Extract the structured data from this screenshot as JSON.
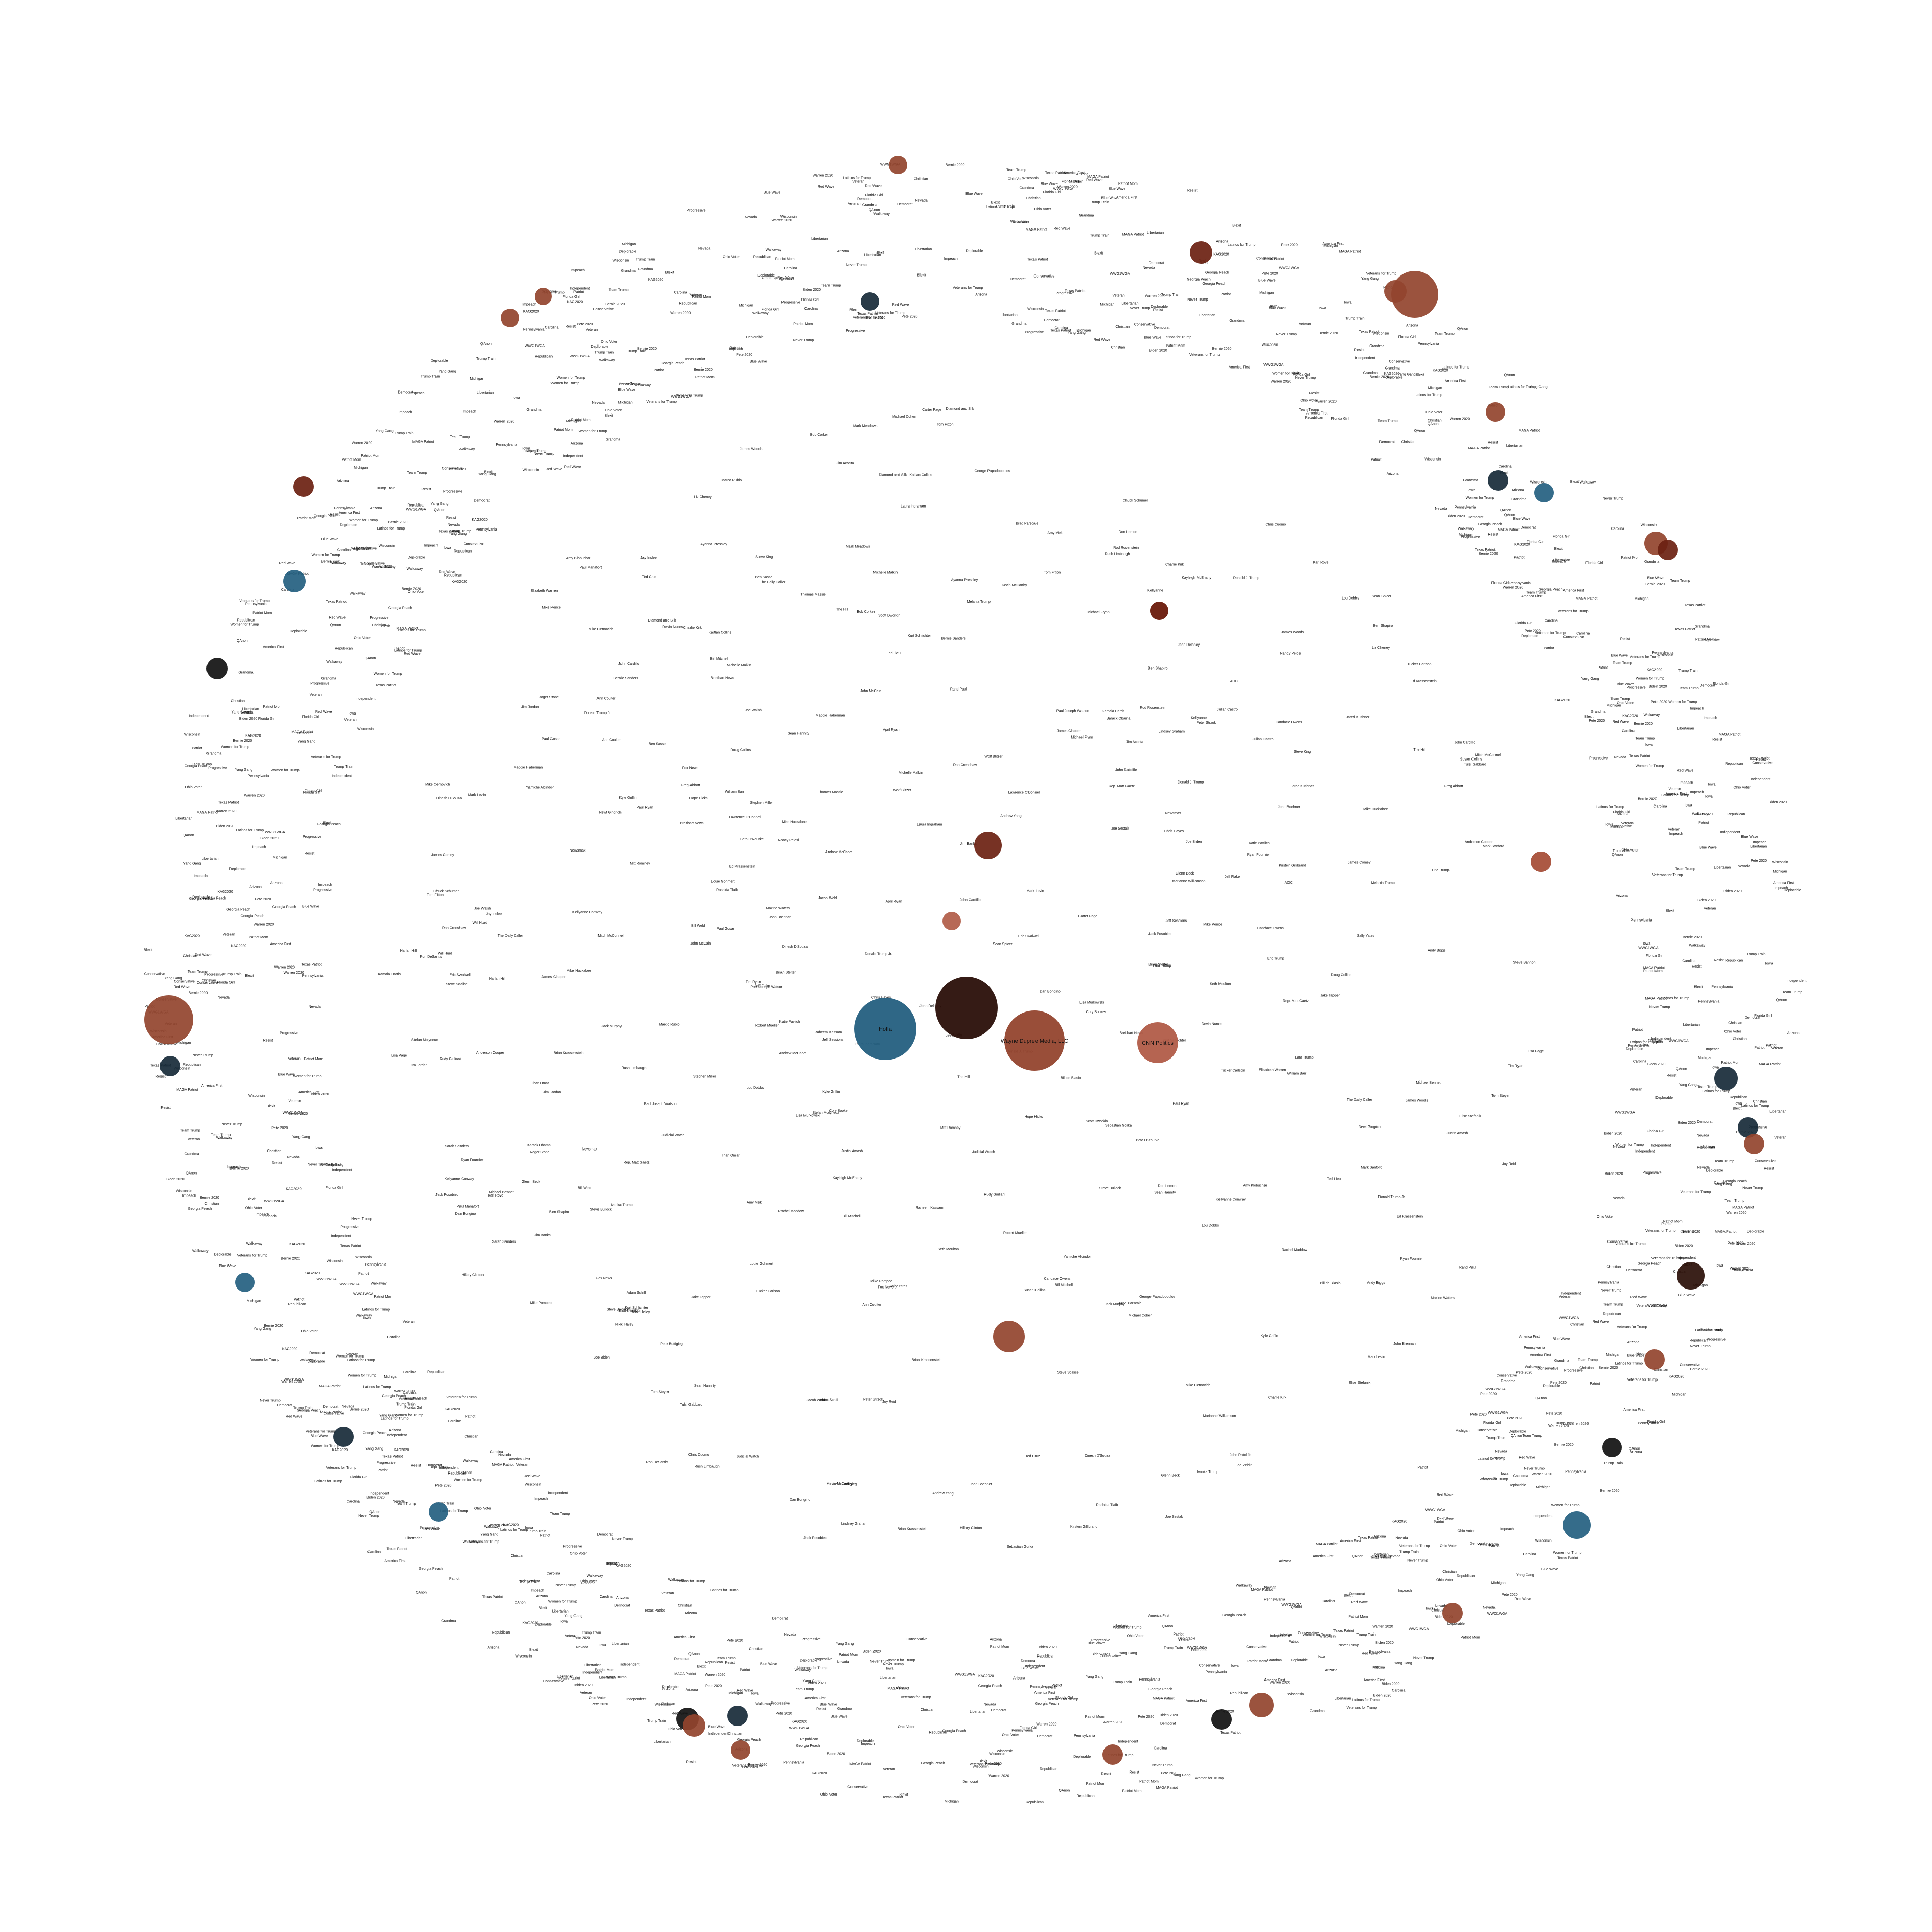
{
  "graph": {
    "palette": {
      "rust": "#93442e",
      "rust_light": "#b15c48",
      "dark_brown": "#2a0f08",
      "maroon": "#6b2111",
      "teal": "#245f80",
      "navy": "#172a38",
      "black": "#111111"
    },
    "hubs": [
      {
        "id": "hub-dark",
        "label": "",
        "color": "dark_brown"
      },
      {
        "id": "hub-teal",
        "label": "Hoffa",
        "color": "teal"
      },
      {
        "id": "hub-rust",
        "label": "Wayne Dupree Media, LLC",
        "color": "rust"
      },
      {
        "id": "hub-rust-small",
        "label": "CNN Politics",
        "color": "rust_light"
      }
    ],
    "inner_labels": [
      "Donald J. Trump",
      "Breitbart News",
      "Fox News",
      "Paul Joseph Watson",
      "Jack Posobiec",
      "Dinesh D'Souza",
      "Ryan Fournier",
      "Kyle Griffin",
      "The Hill",
      "Tom Fitton",
      "Charlie Kirk",
      "Brian Krassenstein",
      "Ed Krassenstein",
      "Mark Levin",
      "Laura Ingraham",
      "Sean Hannity",
      "Candace Owens",
      "James Woods",
      "Mike Cernovich",
      "Diamond and Silk",
      "Bill Mitchell",
      "Scott Dworkin",
      "Kurt Schlichter",
      "Jim Jordan",
      "Donald Trump Jr.",
      "Rep. Matt Gaetz",
      "Lou Dobbs",
      "Judicial Watch",
      "Newsmax",
      "The Daily Caller",
      "Tucker Carlson",
      "Dan Bongino",
      "Ann Coulter",
      "Kellyanne Conway",
      "Mike Huckabee",
      "Ben Shapiro",
      "Glenn Beck",
      "Michelle Malkin",
      "Rush Limbaugh",
      "John Cardillo",
      "Rudy Giuliani",
      "Katie Pavlich",
      "Stefan Molyneux",
      "Raheem Kassam",
      "Amy Mek",
      "Jacob Wohl",
      "Jack Murphy",
      "Harlan Hill",
      "Joe Walsh",
      "Sebastian Gorka",
      "Ron DeSantis",
      "Lindsey Graham",
      "Ted Cruz",
      "Rand Paul",
      "Marco Rubio",
      "Nancy Pelosi",
      "Chuck Schumer",
      "Adam Schiff",
      "Maxine Waters",
      "Elizabeth Warren",
      "Bernie Sanders",
      "Kamala Harris",
      "Joe Biden",
      "Hillary Clinton",
      "Barack Obama",
      "Rachel Maddow",
      "Chris Cuomo",
      "Don Lemon",
      "Jake Tapper",
      "Wolf Blitzer",
      "Anderson Cooper",
      "Joy Reid",
      "Chris Hayes",
      "Lawrence O'Donnell",
      "Brian Stelter",
      "Jim Acosta",
      "April Ryan",
      "Maggie Haberman",
      "Yamiche Alcindor",
      "Kaitlan Collins",
      "Eric Swalwell",
      "Ted Lieu",
      "Ilhan Omar",
      "AOC",
      "Rashida Tlaib",
      "Ayanna Pressley",
      "Cory Booker",
      "Beto O'Rourke",
      "Pete Buttigieg",
      "Andrew Yang",
      "Tulsi Gabbard",
      "Amy Klobuchar",
      "Julian Castro",
      "Kirsten Gillibrand",
      "Jay Inslee",
      "Steve Bullock",
      "Michael Bennet",
      "John Delaney",
      "Tim Ryan",
      "Seth Moulton",
      "Bill de Blasio",
      "Marianne Williamson",
      "Tom Steyer",
      "Joe Sestak",
      "Mark Sanford",
      "Bill Weld",
      "Greg Abbott",
      "Kevin McCarthy",
      "Mitch McConnell",
      "Steve Scalise",
      "Mike Pence",
      "Nikki Haley",
      "Mike Pompeo",
      "William Barr",
      "Jeff Sessions",
      "Robert Mueller",
      "James Comey",
      "Andrew McCabe",
      "Peter Strzok",
      "Lisa Page",
      "John Brennan",
      "James Clapper",
      "Sally Yates",
      "Rod Rosenstein",
      "Michael Cohen",
      "Paul Manafort",
      "Roger Stone",
      "Michael Flynn",
      "George Papadopoulos",
      "Carter Page",
      "Devin Nunes",
      "Mark Meadows",
      "Jim Banks",
      "Doug Collins",
      "Elise Stefanik",
      "Lee Zeldin",
      "John Ratcliffe",
      "Andy Biggs",
      "Paul Gosar",
      "Louie Gohmert",
      "Steve King",
      "Dan Crenshaw",
      "Will Hurd",
      "Justin Amash",
      "Thomas Massie",
      "Liz Cheney",
      "Mitt Romney",
      "Susan Collins",
      "Lisa Murkowski",
      "Ben Sasse",
      "Jeff Flake",
      "John McCain",
      "Bob Corker",
      "Paul Ryan",
      "John Boehner",
      "Newt Gingrich",
      "Karl Rove",
      "Steve Bannon",
      "Stephen Miller",
      "Kellyanne",
      "Sarah Sanders",
      "Sean Spicer",
      "Hope Hicks",
      "Jared Kushner",
      "Ivanka Trump",
      "Eric Trump",
      "Lara Trump",
      "Melania Trump",
      "Brad Parscale",
      "Kayleigh McEnany"
    ],
    "rim_labels": [
      "Team Trump",
      "MAGA Patriot",
      "KAG2020",
      "Trump Train",
      "Deplorable",
      "Patriot Mom",
      "America First",
      "Red Wave",
      "QAnon",
      "WWG1WGA",
      "Veterans for Trump",
      "Women for Trump",
      "Blexit",
      "Walkaway",
      "Latinos for Trump",
      "Resist",
      "Blue Wave",
      "Never Trump",
      "Impeach",
      "Democrat",
      "Progressive",
      "Bernie 2020",
      "Yang Gang",
      "Pete 2020",
      "Biden 2020",
      "Warren 2020",
      "Independent",
      "Libertarian",
      "Conservative",
      "Republican",
      "Christian",
      "Patriot",
      "Veteran",
      "Grandma",
      "Texas Patriot",
      "Florida Girl",
      "Ohio Voter",
      "Michigan",
      "Pennsylvania",
      "Arizona",
      "Georgia Peach",
      "Carolina",
      "Wisconsin",
      "Iowa",
      "Nevada"
    ],
    "medium_nodes": [
      {
        "label": "",
        "color": "maroon"
      },
      {
        "label": "",
        "color": "rust_light"
      },
      {
        "label": "",
        "color": "rust"
      },
      {
        "label": "",
        "color": "rust_light"
      },
      {
        "label": "",
        "color": "maroon"
      }
    ],
    "wide_labels": [
      "",
      "",
      ""
    ]
  }
}
